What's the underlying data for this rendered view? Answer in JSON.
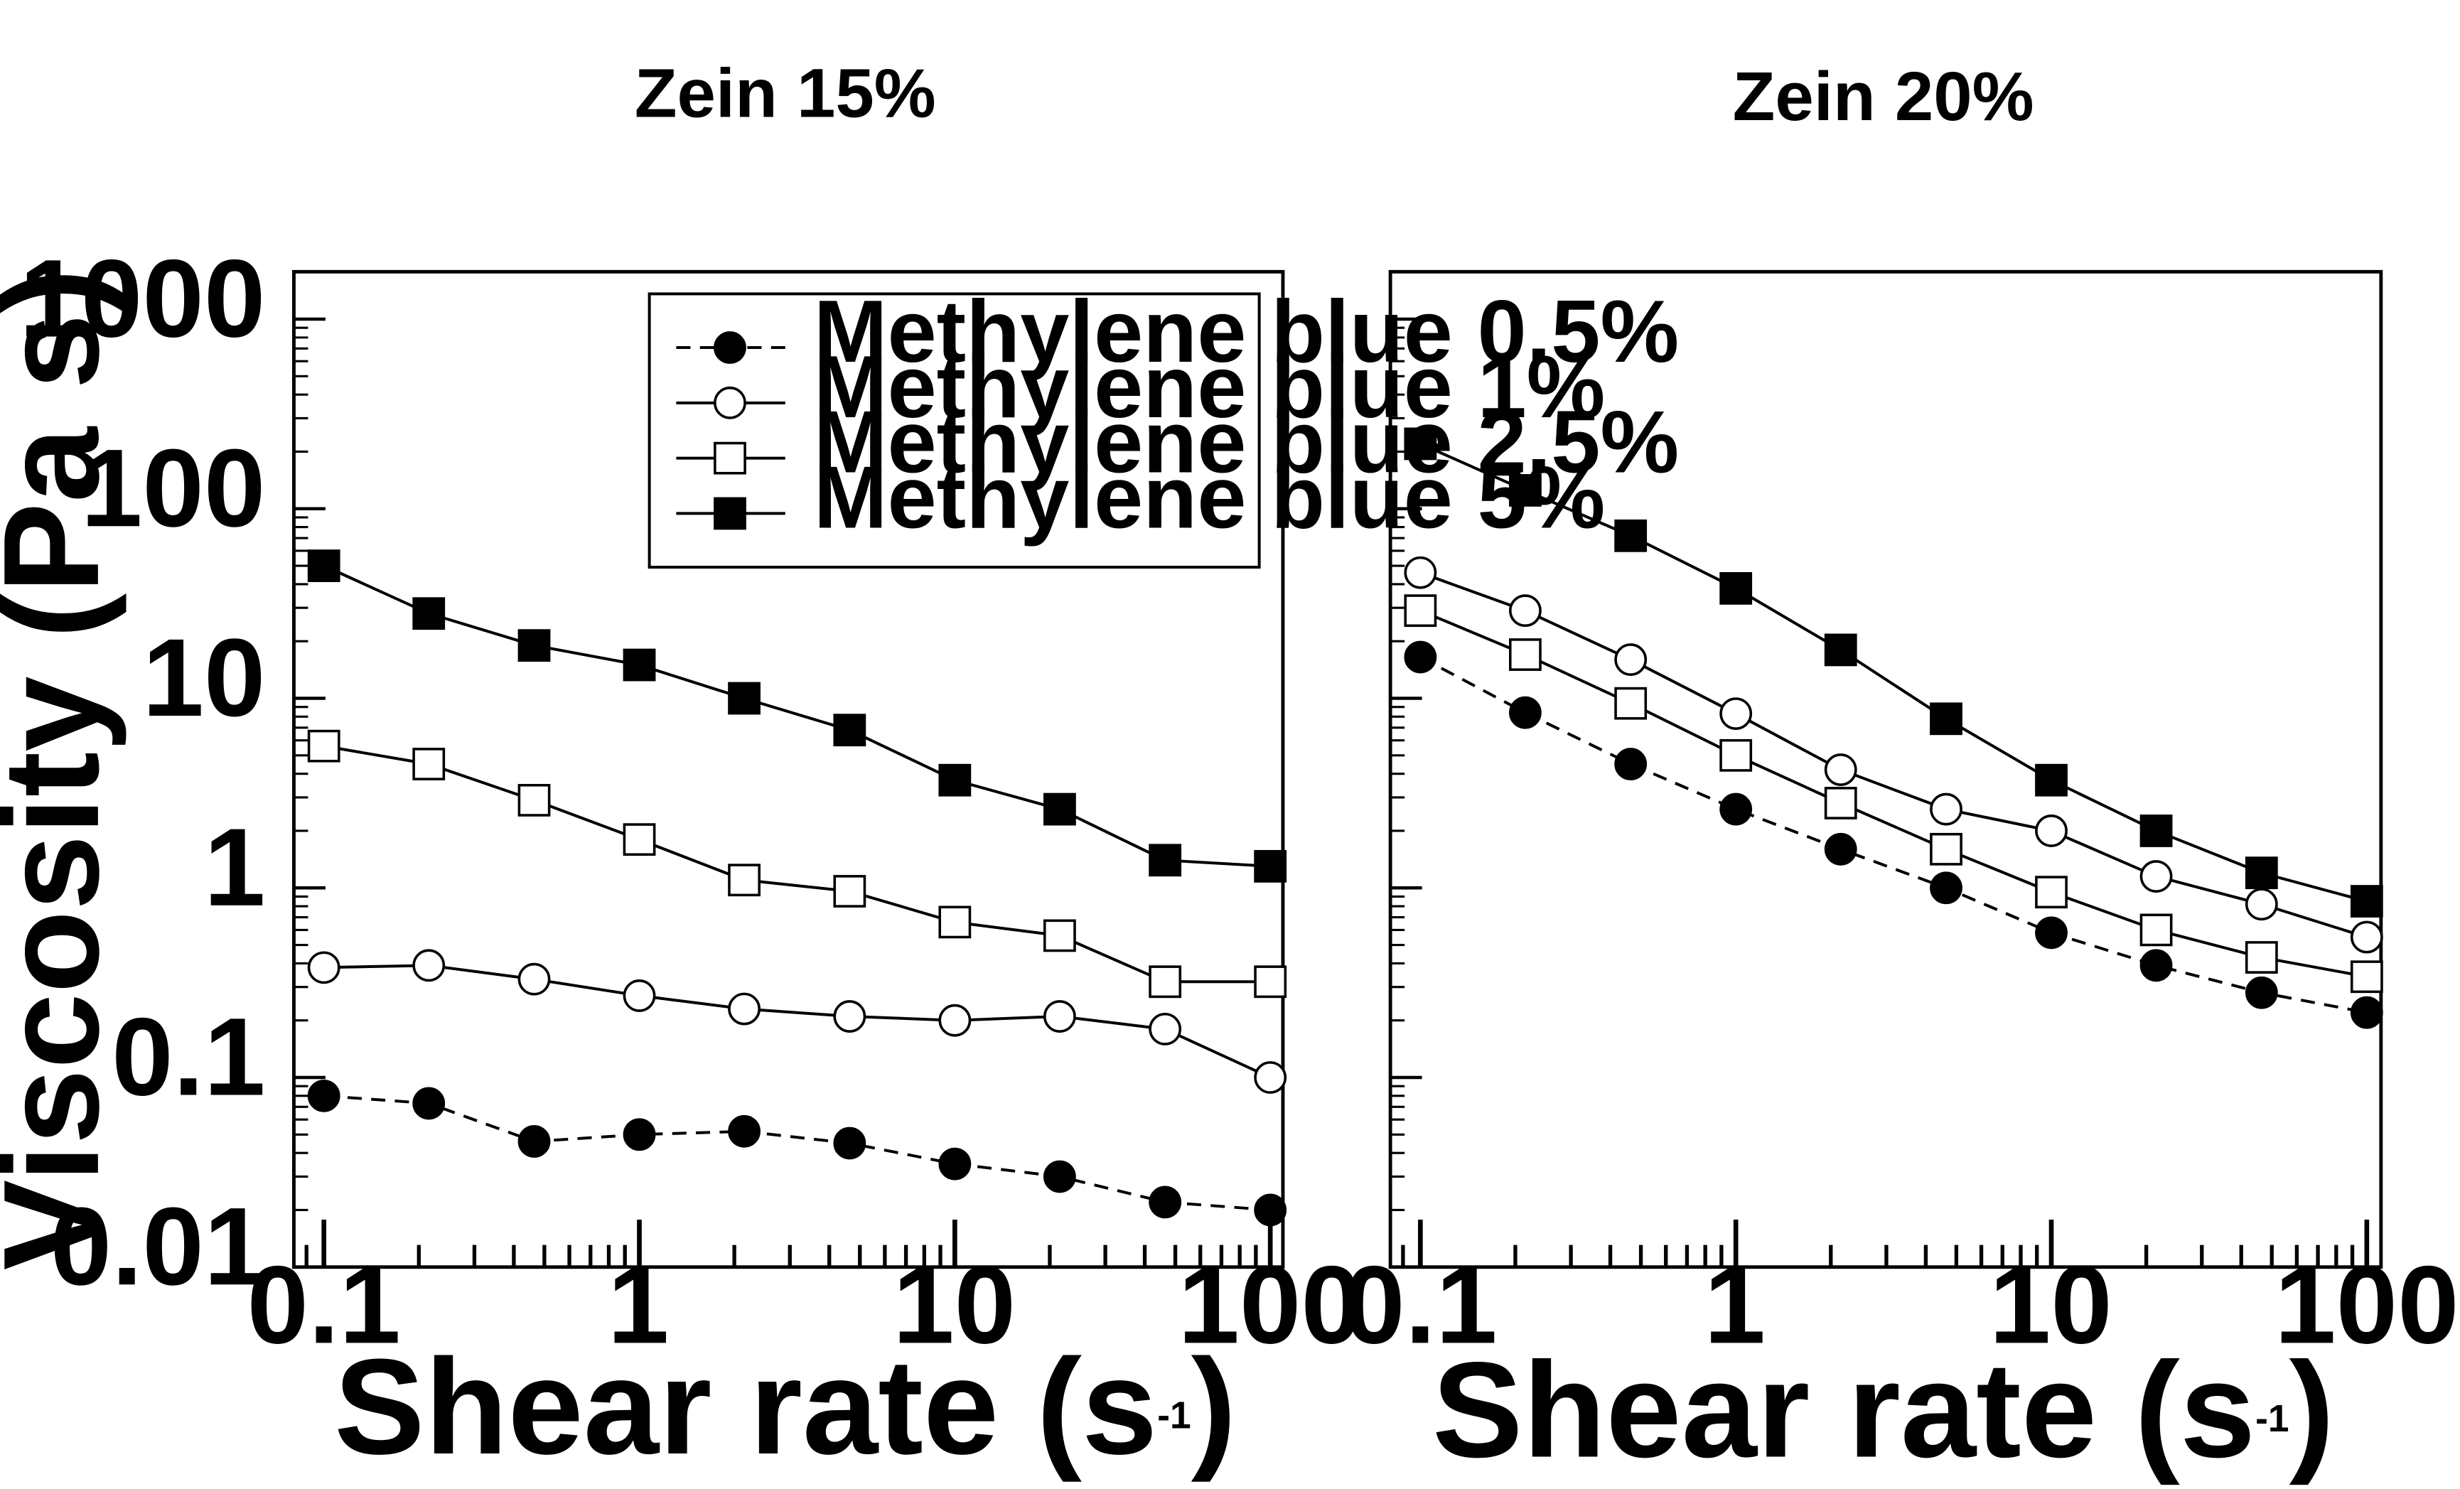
{
  "chart_data": [
    {
      "type": "line",
      "title": "Zein 15%",
      "xlabel": "Shear rate (s",
      "xlabel_sup": "-1",
      "xlabel_close": ")",
      "ylabel": "Viscosity (Pa s)",
      "xscale": "log",
      "yscale": "log",
      "xlim": [
        0.1,
        100
      ],
      "ylim": [
        0.01,
        1000
      ],
      "xtick_labels": [
        "0.1",
        "1",
        "10",
        "100"
      ],
      "ytick_labels": [
        "0.01",
        "0.1",
        "1",
        "10",
        "100",
        "1000"
      ],
      "legend_position": "top-right",
      "x": [
        0.1,
        0.215,
        0.464,
        1,
        2.15,
        4.64,
        10,
        21.5,
        46.4,
        100
      ],
      "series": [
        {
          "name": "Methylene blue 0.5%",
          "marker": "filled-circle",
          "line": "dashed",
          "values": [
            0.08,
            0.073,
            0.046,
            0.05,
            0.052,
            0.045,
            0.035,
            0.03,
            0.022,
            0.02
          ]
        },
        {
          "name": "Methylene blue 1%",
          "marker": "open-circle",
          "line": "solid",
          "values": [
            0.38,
            0.39,
            0.33,
            0.27,
            0.23,
            0.21,
            0.2,
            0.21,
            0.18,
            0.1
          ]
        },
        {
          "name": "Methylene blue 2.5%",
          "marker": "open-square",
          "line": "solid",
          "values": [
            5.6,
            4.5,
            2.9,
            1.8,
            1.1,
            0.96,
            0.66,
            0.56,
            0.32,
            0.32
          ]
        },
        {
          "name": "Methylene blue 5%",
          "marker": "filled-square",
          "line": "solid",
          "values": [
            50,
            28,
            19,
            15,
            10,
            6.8,
            3.7,
            2.6,
            1.4,
            1.3
          ]
        }
      ]
    },
    {
      "type": "line",
      "title": "Zein 20%",
      "xlabel": "Shear rate (s",
      "xlabel_sup": "-1",
      "xlabel_close": ")",
      "ylabel": "",
      "xscale": "log",
      "yscale": "log",
      "xlim": [
        0.1,
        100
      ],
      "ylim": [
        0.01,
        1000
      ],
      "xtick_labels": [
        "0.1",
        "1",
        "10",
        "100"
      ],
      "ytick_labels": [],
      "x": [
        0.1,
        0.215,
        0.464,
        1,
        2.15,
        4.64,
        10,
        21.5,
        46.4,
        100
      ],
      "series": [
        {
          "name": "Methylene blue 0.5%",
          "marker": "filled-circle",
          "line": "dashed",
          "values": [
            16.5,
            8.4,
            4.5,
            2.6,
            1.6,
            1.0,
            0.58,
            0.39,
            0.28,
            0.22
          ]
        },
        {
          "name": "Methylene blue 1%",
          "marker": "open-circle",
          "line": "solid",
          "values": [
            46,
            29,
            16,
            8.3,
            4.2,
            2.6,
            2.0,
            1.15,
            0.82,
            0.55
          ]
        },
        {
          "name": "Methylene blue 2.5%",
          "marker": "open-square",
          "line": "solid",
          "values": [
            29,
            17,
            9.4,
            5.0,
            2.8,
            1.6,
            0.95,
            0.6,
            0.43,
            0.34
          ]
        },
        {
          "name": "Methylene blue 5%",
          "marker": "filled-square",
          "line": "solid",
          "values": [
            220,
            125,
            72,
            38,
            18,
            7.8,
            3.7,
            2.0,
            1.2,
            0.85
          ]
        }
      ]
    }
  ]
}
